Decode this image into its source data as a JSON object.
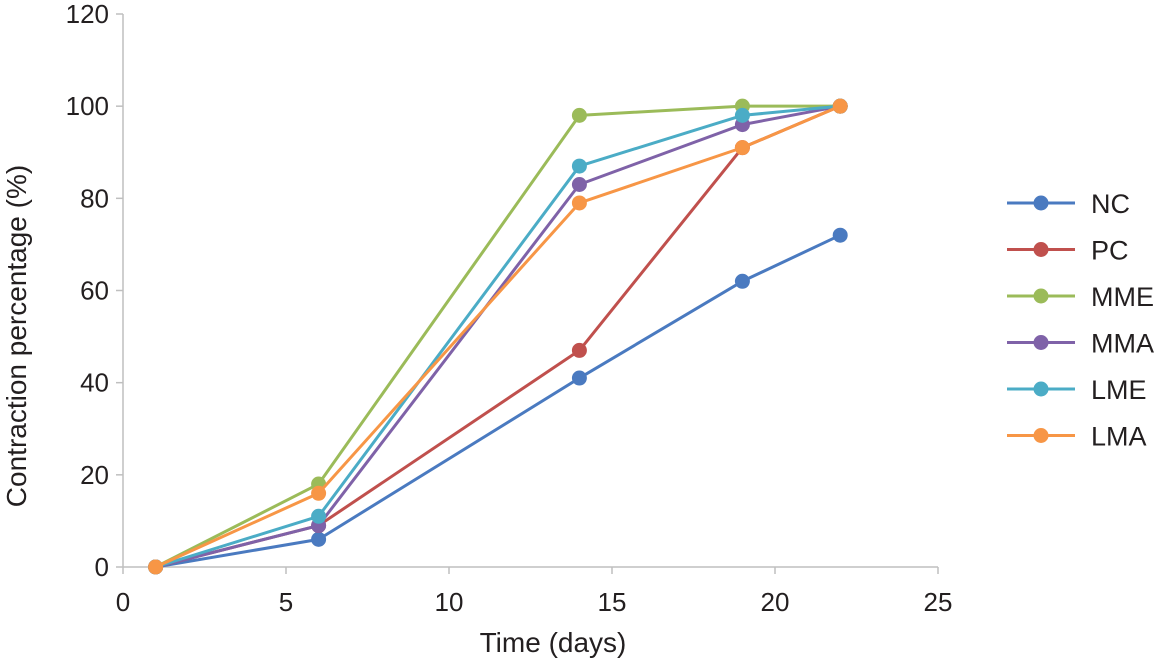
{
  "chart_data": {
    "type": "line",
    "title": "",
    "xlabel": "Time (days)",
    "ylabel": "Contraction percentage (%)",
    "xlim": [
      0,
      25
    ],
    "ylim": [
      0,
      120
    ],
    "xticks": [
      0,
      5,
      10,
      15,
      20,
      25
    ],
    "yticks": [
      0,
      20,
      40,
      60,
      80,
      100,
      120
    ],
    "grid": false,
    "legend_position": "right",
    "x": [
      1,
      6,
      14,
      19,
      22
    ],
    "series": [
      {
        "name": "NC",
        "color": "#4a7ac0",
        "values": [
          0,
          6,
          41,
          62,
          72
        ]
      },
      {
        "name": "PC",
        "color": "#c0504d",
        "values": [
          0,
          9,
          47,
          91,
          100
        ]
      },
      {
        "name": "MME",
        "color": "#9bbb59",
        "values": [
          0,
          18,
          98,
          100,
          100
        ]
      },
      {
        "name": "MMA",
        "color": "#7f62a8",
        "values": [
          0,
          9,
          83,
          96,
          100
        ]
      },
      {
        "name": "LME",
        "color": "#4bacc6",
        "values": [
          0,
          11,
          87,
          98,
          100
        ]
      },
      {
        "name": "LMA",
        "color": "#f79646",
        "values": [
          0,
          16,
          79,
          91,
          100
        ]
      }
    ]
  }
}
